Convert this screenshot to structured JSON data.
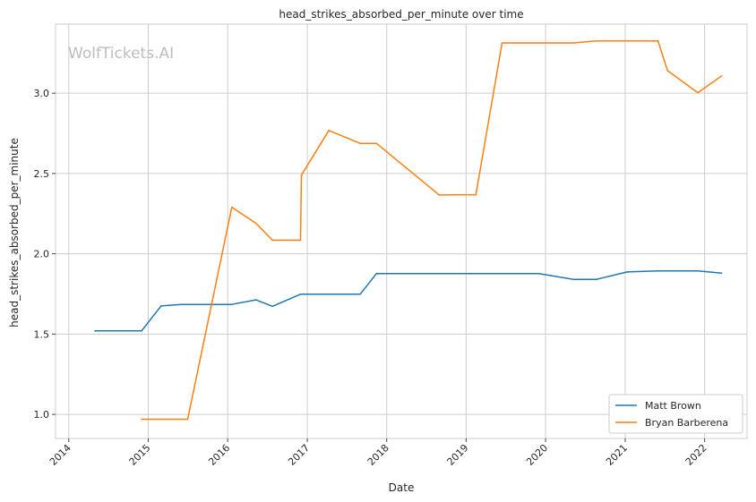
{
  "chart_data": {
    "type": "line",
    "title": "head_strikes_absorbed_per_minute over time",
    "xlabel": "Date",
    "ylabel": "head_strikes_absorbed_per_minute",
    "watermark": "WolfTickets.AI",
    "xlim": [
      "2013-11-01",
      "2022-07-15"
    ],
    "ylim": [
      0.85,
      3.43
    ],
    "x_ticks": [
      "2014",
      "2015",
      "2016",
      "2017",
      "2018",
      "2019",
      "2020",
      "2021",
      "2022"
    ],
    "y_ticks": [
      "1.0",
      "1.5",
      "2.0",
      "2.5",
      "3.0"
    ],
    "grid": true,
    "legend_position": "lower right",
    "series": [
      {
        "name": "Matt Brown",
        "color": "#1f77b4",
        "points": [
          {
            "x": "2014-05-01",
            "y": 1.52
          },
          {
            "x": "2014-12-01",
            "y": 1.52
          },
          {
            "x": "2015-03-01",
            "y": 1.675
          },
          {
            "x": "2015-06-01",
            "y": 1.685
          },
          {
            "x": "2015-12-01",
            "y": 1.685
          },
          {
            "x": "2016-01-20",
            "y": 1.685
          },
          {
            "x": "2016-05-10",
            "y": 1.713
          },
          {
            "x": "2016-07-25",
            "y": 1.673
          },
          {
            "x": "2016-12-01",
            "y": 1.748
          },
          {
            "x": "2017-09-01",
            "y": 1.748
          },
          {
            "x": "2017-11-15",
            "y": 1.877
          },
          {
            "x": "2019-12-01",
            "y": 1.877
          },
          {
            "x": "2020-05-10",
            "y": 1.84
          },
          {
            "x": "2020-08-20",
            "y": 1.84
          },
          {
            "x": "2021-01-10",
            "y": 1.887
          },
          {
            "x": "2021-06-01",
            "y": 1.893
          },
          {
            "x": "2021-12-01",
            "y": 1.893
          },
          {
            "x": "2022-03-20",
            "y": 1.88
          }
        ]
      },
      {
        "name": "Bryan Barberena",
        "color": "#ff7f0e",
        "points": [
          {
            "x": "2014-12-01",
            "y": 0.97
          },
          {
            "x": "2015-07-01",
            "y": 0.97
          },
          {
            "x": "2016-01-20",
            "y": 2.29
          },
          {
            "x": "2016-05-10",
            "y": 2.19
          },
          {
            "x": "2016-07-25",
            "y": 2.085
          },
          {
            "x": "2016-12-01",
            "y": 2.085
          },
          {
            "x": "2016-12-05",
            "y": 2.49
          },
          {
            "x": "2017-04-10",
            "y": 2.768
          },
          {
            "x": "2017-09-01",
            "y": 2.688
          },
          {
            "x": "2017-11-15",
            "y": 2.688
          },
          {
            "x": "2018-08-30",
            "y": 2.366
          },
          {
            "x": "2019-02-15",
            "y": 2.368
          },
          {
            "x": "2019-06-15",
            "y": 3.313
          },
          {
            "x": "2020-05-10",
            "y": 3.313
          },
          {
            "x": "2020-08-20",
            "y": 3.325
          },
          {
            "x": "2021-06-01",
            "y": 3.325
          },
          {
            "x": "2021-07-15",
            "y": 3.14
          },
          {
            "x": "2021-12-01",
            "y": 3.003
          },
          {
            "x": "2022-03-20",
            "y": 3.108
          }
        ]
      }
    ]
  }
}
